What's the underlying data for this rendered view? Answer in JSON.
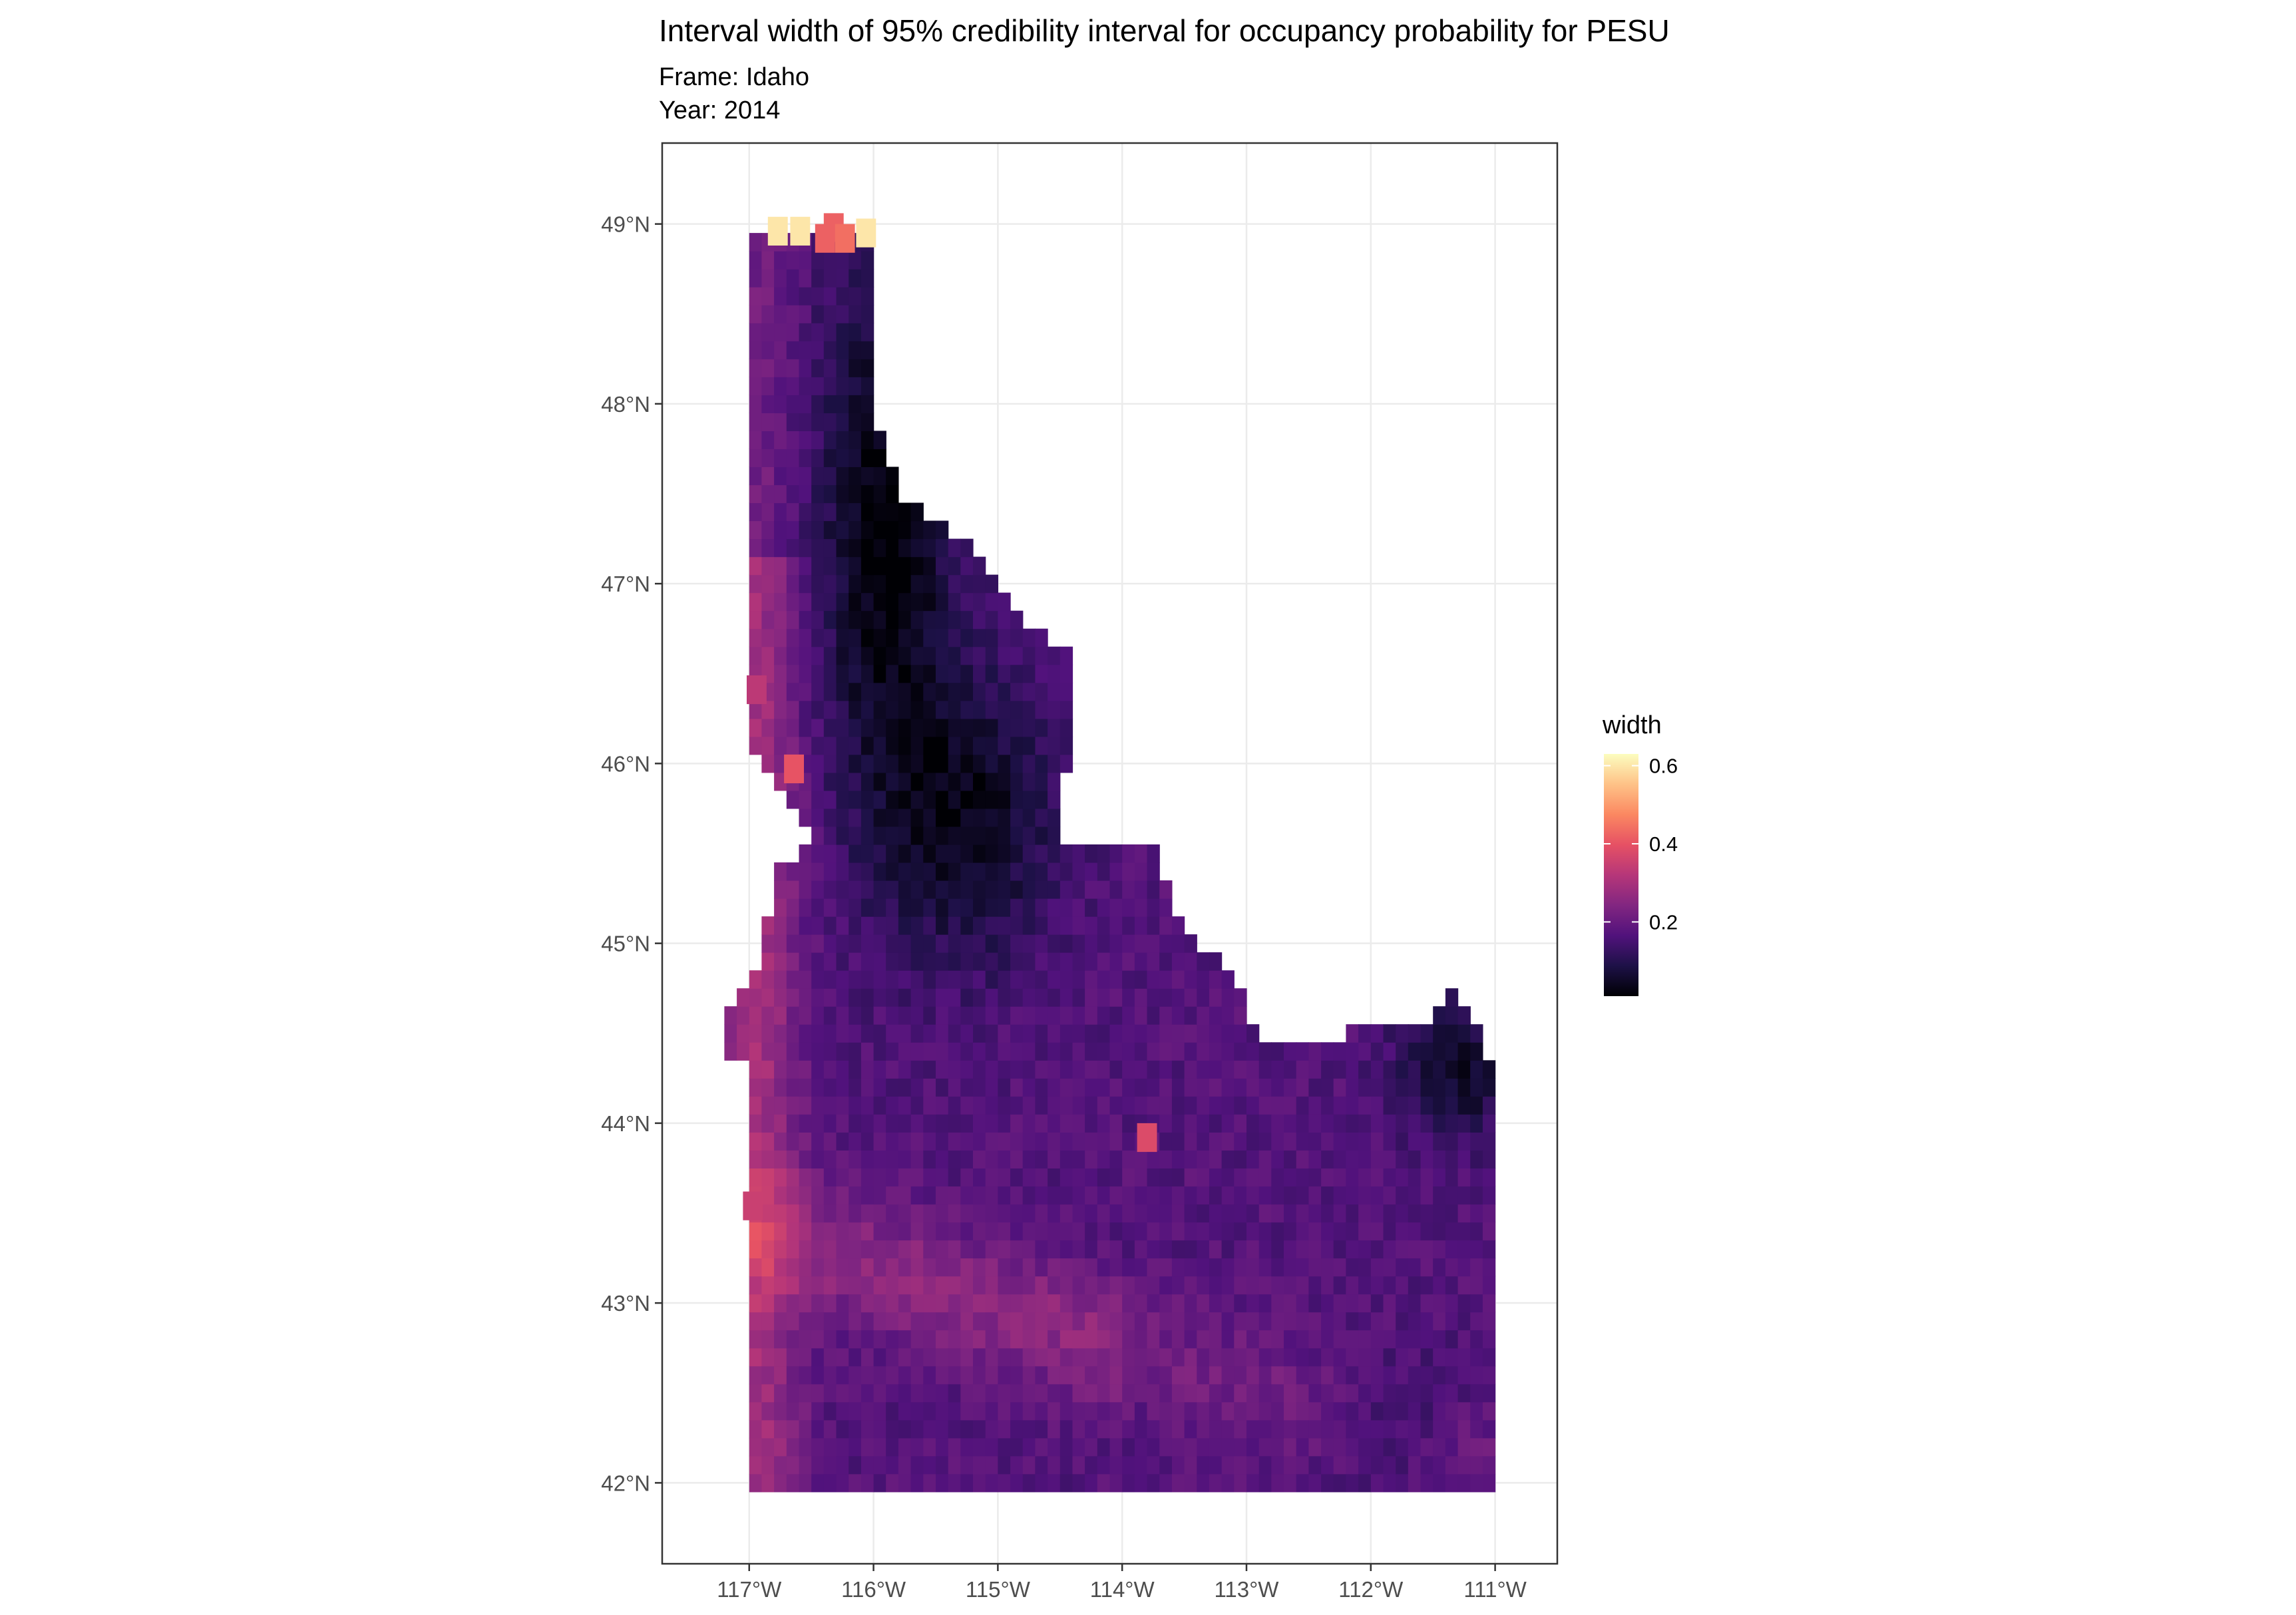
{
  "title": "Interval width of 95% credibility interval for occupancy probability for PESU",
  "subtitle_line1": "Frame: Idaho",
  "subtitle_line2": "Year: 2014",
  "chart_data": {
    "type": "heatmap",
    "description_kind": "gridded map raster",
    "x_axis": {
      "ticks": [
        -117,
        -116,
        -115,
        -114,
        -113,
        -112,
        -111
      ],
      "tick_labels": [
        "117°W",
        "116°W",
        "115°W",
        "114°W",
        "113°W",
        "112°W",
        "111°W"
      ],
      "range": [
        -117.7,
        -110.5
      ]
    },
    "y_axis": {
      "ticks": [
        42,
        43,
        44,
        45,
        46,
        47,
        48,
        49
      ],
      "tick_labels": [
        "42°N",
        "43°N",
        "44°N",
        "45°N",
        "46°N",
        "47°N",
        "48°N",
        "49°N"
      ],
      "range": [
        41.55,
        49.45
      ]
    },
    "legend": {
      "title": "width",
      "ticks": [
        0.2,
        0.4,
        0.6
      ],
      "tick_labels": [
        "0.2",
        "0.4",
        "0.6"
      ],
      "range": [
        0.01,
        0.63
      ],
      "placement": "right"
    },
    "colors": {
      "scale": [
        "#000004",
        "#1d1147",
        "#51127c",
        "#822681",
        "#b63679",
        "#e65164",
        "#fb8861",
        "#fec287",
        "#fcfdbf"
      ]
    },
    "grid": true,
    "highlights": [
      {
        "lon": -116.8,
        "lat": 48.99,
        "width": 0.6
      },
      {
        "lon": -116.62,
        "lat": 48.99,
        "width": 0.6
      },
      {
        "lon": -116.09,
        "lat": 48.98,
        "width": 0.6
      },
      {
        "lon": -116.35,
        "lat": 49.01,
        "width": 0.42
      },
      {
        "lon": -116.26,
        "lat": 48.95,
        "width": 0.44
      },
      {
        "lon": -116.42,
        "lat": 48.95,
        "width": 0.42
      },
      {
        "lon": -116.67,
        "lat": 46.0,
        "width": 0.4
      },
      {
        "lon": -116.97,
        "lat": 46.44,
        "width": 0.33
      },
      {
        "lon": -117.0,
        "lat": 43.57,
        "width": 0.35
      },
      {
        "lon": -113.83,
        "lat": 43.95,
        "width": 0.38
      }
    ]
  }
}
